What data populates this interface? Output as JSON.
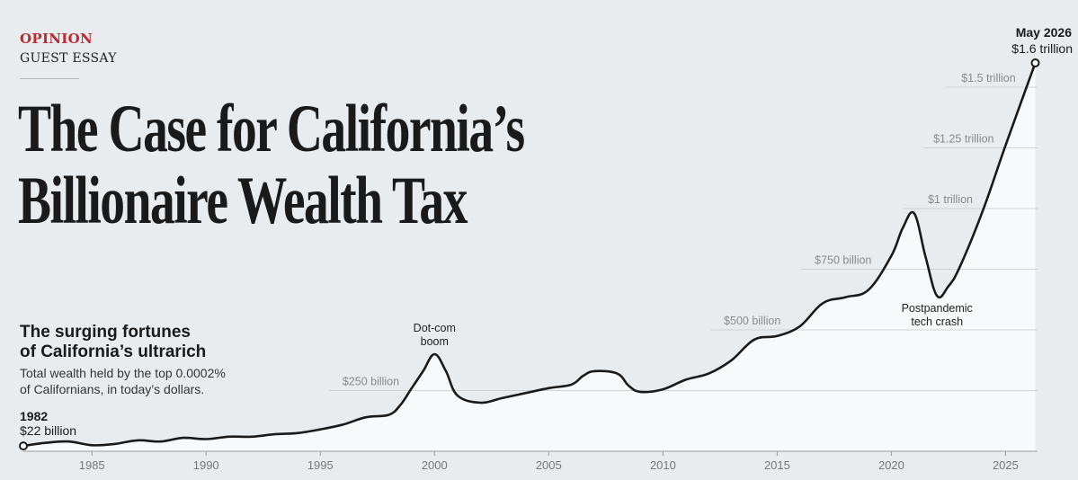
{
  "header": {
    "kicker": "OPINION",
    "subkicker": "GUEST ESSAY",
    "headline_line1": "The Case for California’s",
    "headline_line2": "Billionaire Wealth Tax"
  },
  "chart_info": {
    "title_line1": "The surging fortunes",
    "title_line2": "of California’s ultrarich",
    "subtitle_line1": "Total wealth held by the top 0.0002%",
    "subtitle_line2": "of Californians, in today’s dollars."
  },
  "colors": {
    "background": "#e9ecef",
    "line": "#1a1a1a",
    "area_fill": "#f8f9fa",
    "kicker": "#c0282d",
    "gridline": "#cfd2d6"
  },
  "chart_data": {
    "type": "area",
    "xlim": [
      1982,
      2026.4
    ],
    "ylim": [
      0,
      1600
    ],
    "x_ticks": [
      1985,
      1990,
      1995,
      2000,
      2005,
      2010,
      2015,
      2020,
      2025
    ],
    "gridlines": [
      {
        "value": 250,
        "label": "$250 billion"
      },
      {
        "value": 500,
        "label": "$500 billion"
      },
      {
        "value": 750,
        "label": "$750 billion"
      },
      {
        "value": 1000,
        "label": "$1 trillion"
      },
      {
        "value": 1250,
        "label": "$1.25 trillion"
      },
      {
        "value": 1500,
        "label": "$1.5 trillion"
      }
    ],
    "series": [
      {
        "x": [
          1982,
          1983,
          1984,
          1985,
          1986,
          1987,
          1988,
          1989,
          1990,
          1991,
          1992,
          1993,
          1994,
          1995,
          1996,
          1997,
          1998,
          1998.5,
          1999,
          1999.5,
          2000,
          2000.5,
          2001,
          2002,
          2003,
          2004,
          2005,
          2006,
          2006.5,
          2007,
          2008,
          2008.5,
          2009,
          2010,
          2011,
          2012,
          2013,
          2014,
          2015,
          2016,
          2017,
          2018,
          2019,
          2020,
          2020.5,
          2021,
          2021.5,
          2022,
          2022.5,
          2023,
          2024,
          2025,
          2026.3
        ],
        "values": [
          22,
          35,
          40,
          25,
          30,
          45,
          40,
          55,
          50,
          60,
          60,
          70,
          75,
          90,
          110,
          140,
          150,
          190,
          260,
          330,
          400,
          330,
          230,
          200,
          220,
          240,
          260,
          275,
          310,
          330,
          320,
          270,
          245,
          255,
          295,
          320,
          375,
          460,
          475,
          515,
          610,
          635,
          665,
          805,
          920,
          980,
          800,
          640,
          680,
          760,
          990,
          1260,
          1600
        ]
      }
    ],
    "annotations": [
      {
        "x": 2000,
        "y": 400,
        "line1": "Dot-com",
        "line2": "boom",
        "position": "above"
      },
      {
        "x": 2022,
        "y": 640,
        "line1": "Postpandemic",
        "line2": "tech crash",
        "position": "below"
      }
    ],
    "start_point": {
      "x": 1982,
      "y": 22,
      "year_label": "1982",
      "value_label": "$22 billion"
    },
    "end_point": {
      "x": 2026.3,
      "y": 1600,
      "year_label": "May 2026",
      "value_label": "$1.6 trillion"
    }
  }
}
